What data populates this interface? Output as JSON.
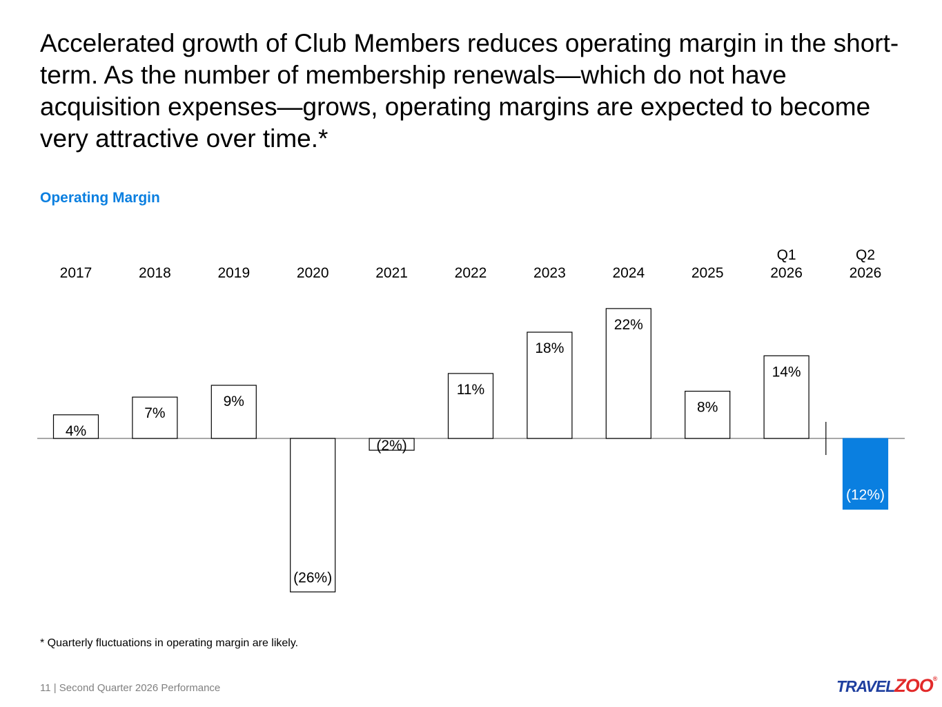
{
  "headline": "Accelerated growth of Club Members reduces operating margin in the short-term. As the number of membership renewals—which do not have acquisition expenses—grows, operating margins are expected to become very attractive over time.*",
  "chart_data": {
    "type": "bar",
    "title": "Operating Margin",
    "categories": [
      [
        "2017"
      ],
      [
        "2018"
      ],
      [
        "2019"
      ],
      [
        "2020"
      ],
      [
        "2021"
      ],
      [
        "2022"
      ],
      [
        "2023"
      ],
      [
        "2024"
      ],
      [
        "2025"
      ],
      [
        "Q1",
        "2026"
      ],
      [
        "Q2",
        "2026"
      ]
    ],
    "values": [
      4,
      7,
      9,
      -26,
      -2,
      11,
      18,
      22,
      8,
      14,
      -12
    ],
    "labels": [
      "4%",
      "7%",
      "9%",
      "(26%)",
      "(2%)",
      "11%",
      "18%",
      "22%",
      "8%",
      "14%",
      "(12%)"
    ],
    "highlight_index": 10,
    "highlight_color": "#0a7fe0",
    "separator_before_index": 10,
    "unit": "%"
  },
  "footnote": "* Quarterly fluctuations in operating margin are likely.",
  "footer": "11 | Second Quarter 2026 Performance",
  "logo": {
    "part1": "TRAVEL",
    "part2": "ZOO",
    "reg": "®"
  }
}
